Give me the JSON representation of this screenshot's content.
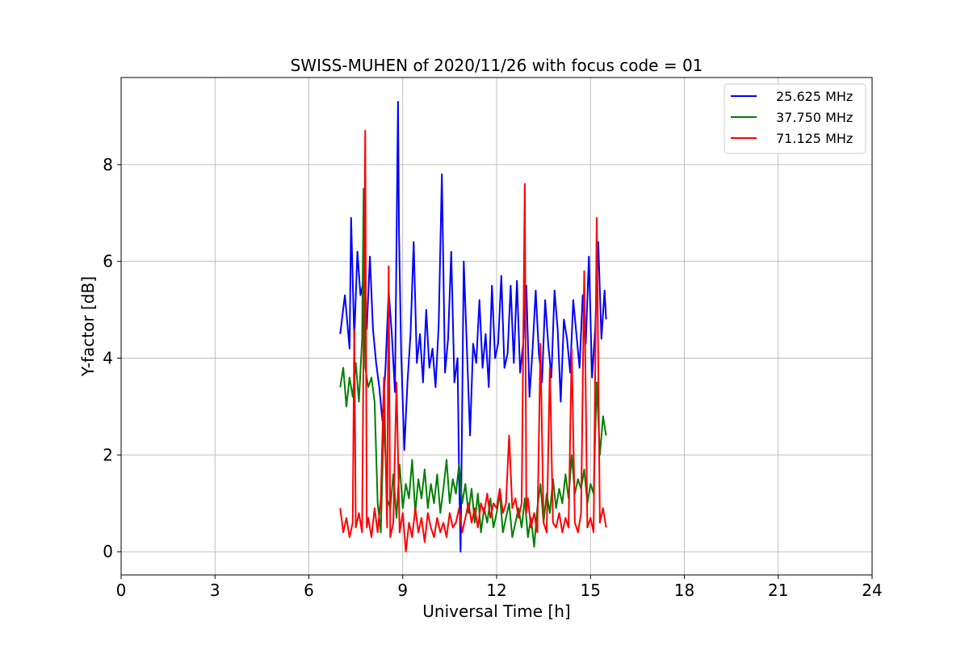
{
  "chart_data": {
    "type": "line",
    "title": "SWISS-MUHEN of 2020/11/26 with focus code = 01",
    "xlabel": "Universal Time [h]",
    "ylabel": "Y-factor [dB]",
    "xlim": [
      0,
      24
    ],
    "ylim": [
      -0.48,
      9.8
    ],
    "xticks": [
      0,
      3,
      6,
      9,
      12,
      15,
      18,
      21,
      24
    ],
    "yticks": [
      0,
      2,
      4,
      6,
      8
    ],
    "grid": true,
    "legend_position": "top-right",
    "series": [
      {
        "name": "25.625 MHz",
        "color": "#0000ff",
        "x": [
          7.0,
          7.15,
          7.3,
          7.35,
          7.45,
          7.55,
          7.65,
          7.75,
          7.85,
          7.95,
          8.05,
          8.15,
          8.25,
          8.35,
          8.45,
          8.55,
          8.65,
          8.75,
          8.85,
          8.88,
          8.95,
          9.05,
          9.15,
          9.25,
          9.35,
          9.45,
          9.55,
          9.65,
          9.75,
          9.85,
          9.95,
          10.05,
          10.15,
          10.25,
          10.35,
          10.45,
          10.55,
          10.65,
          10.75,
          10.8,
          10.85,
          10.95,
          11.05,
          11.15,
          11.25,
          11.35,
          11.45,
          11.55,
          11.65,
          11.75,
          11.85,
          11.95,
          12.05,
          12.15,
          12.25,
          12.35,
          12.45,
          12.55,
          12.65,
          12.75,
          12.85,
          12.95,
          13.05,
          13.15,
          13.25,
          13.35,
          13.45,
          13.55,
          13.65,
          13.75,
          13.85,
          13.95,
          14.05,
          14.15,
          14.25,
          14.35,
          14.45,
          14.55,
          14.65,
          14.75,
          14.85,
          14.95,
          15.05,
          15.15,
          15.25,
          15.35,
          15.45,
          15.5
        ],
        "y": [
          4.5,
          5.3,
          4.2,
          6.9,
          4.4,
          6.2,
          5.3,
          5.6,
          4.6,
          6.1,
          4.6,
          3.9,
          3.4,
          2.7,
          3.8,
          5.4,
          4.5,
          3.3,
          9.3,
          6.6,
          4.1,
          2.1,
          3.5,
          4.5,
          6.4,
          3.9,
          4.5,
          3.5,
          5.0,
          3.8,
          4.2,
          3.4,
          4.7,
          7.8,
          3.7,
          4.4,
          6.2,
          3.5,
          4.0,
          1.6,
          0.0,
          6.0,
          4.2,
          2.4,
          4.3,
          3.9,
          5.2,
          3.8,
          4.5,
          3.4,
          5.5,
          4.0,
          4.3,
          5.7,
          3.8,
          4.1,
          5.5,
          3.9,
          5.6,
          3.7,
          4.3,
          5.5,
          3.2,
          4.2,
          5.4,
          4.1,
          3.5,
          5.2,
          4.3,
          3.6,
          5.4,
          4.6,
          3.1,
          4.8,
          4.4,
          3.7,
          5.2,
          4.5,
          3.8,
          5.3,
          4.3,
          6.1,
          3.6,
          4.6,
          6.4,
          4.4,
          5.4,
          4.8
        ]
      },
      {
        "name": "37.750 MHz",
        "color": "#008000",
        "x": [
          7.0,
          7.1,
          7.2,
          7.3,
          7.4,
          7.5,
          7.6,
          7.7,
          7.75,
          7.8,
          7.9,
          8.0,
          8.1,
          8.2,
          8.3,
          8.4,
          8.5,
          8.6,
          8.7,
          8.8,
          8.9,
          9.0,
          9.1,
          9.2,
          9.3,
          9.4,
          9.5,
          9.6,
          9.7,
          9.8,
          9.9,
          10.0,
          10.1,
          10.2,
          10.3,
          10.4,
          10.5,
          10.6,
          10.7,
          10.8,
          10.9,
          11.0,
          11.1,
          11.2,
          11.3,
          11.4,
          11.5,
          11.6,
          11.7,
          11.8,
          11.9,
          12.0,
          12.1,
          12.2,
          12.3,
          12.4,
          12.5,
          12.6,
          12.7,
          12.8,
          12.9,
          13.0,
          13.1,
          13.2,
          13.3,
          13.4,
          13.5,
          13.6,
          13.7,
          13.8,
          13.9,
          14.0,
          14.1,
          14.2,
          14.3,
          14.4,
          14.5,
          14.6,
          14.7,
          14.8,
          14.9,
          15.0,
          15.1,
          15.2,
          15.3,
          15.4,
          15.5
        ],
        "y": [
          3.4,
          3.8,
          3.0,
          3.6,
          3.2,
          3.9,
          3.1,
          4.4,
          7.5,
          3.8,
          3.4,
          3.6,
          3.1,
          1.0,
          0.4,
          2.8,
          1.1,
          0.9,
          1.6,
          0.7,
          1.8,
          0.9,
          1.4,
          1.1,
          1.9,
          0.8,
          1.5,
          1.1,
          1.7,
          0.9,
          1.4,
          1.0,
          1.6,
          0.8,
          1.3,
          1.9,
          1.0,
          1.5,
          1.2,
          1.8,
          1.0,
          1.4,
          0.8,
          1.3,
          0.6,
          1.2,
          0.4,
          0.9,
          0.6,
          1.1,
          0.5,
          0.8,
          1.2,
          0.4,
          0.7,
          1.0,
          0.3,
          0.6,
          0.9,
          0.5,
          1.1,
          0.3,
          0.7,
          0.1,
          0.9,
          1.4,
          0.6,
          1.2,
          0.8,
          1.5,
          0.9,
          1.3,
          1.0,
          1.6,
          1.1,
          2.0,
          1.2,
          1.5,
          1.3,
          1.7,
          1.0,
          1.4,
          1.2,
          3.5,
          2.0,
          2.8,
          2.4
        ]
      },
      {
        "name": "71.125 MHz",
        "color": "#ff0000",
        "x": [
          7.0,
          7.1,
          7.2,
          7.3,
          7.4,
          7.45,
          7.5,
          7.6,
          7.7,
          7.8,
          7.85,
          7.9,
          8.0,
          8.1,
          8.2,
          8.3,
          8.4,
          8.5,
          8.55,
          8.6,
          8.7,
          8.8,
          8.9,
          9.0,
          9.1,
          9.2,
          9.3,
          9.4,
          9.5,
          9.6,
          9.7,
          9.8,
          9.9,
          10.0,
          10.1,
          10.2,
          10.3,
          10.4,
          10.5,
          10.6,
          10.7,
          10.8,
          10.9,
          11.0,
          11.1,
          11.2,
          11.3,
          11.4,
          11.5,
          11.6,
          11.7,
          11.8,
          11.9,
          12.0,
          12.1,
          12.2,
          12.3,
          12.4,
          12.5,
          12.6,
          12.7,
          12.8,
          12.9,
          12.95,
          13.0,
          13.1,
          13.2,
          13.3,
          13.4,
          13.5,
          13.6,
          13.7,
          13.8,
          13.9,
          14.0,
          14.1,
          14.2,
          14.3,
          14.4,
          14.5,
          14.6,
          14.7,
          14.8,
          14.9,
          15.0,
          15.1,
          15.2,
          15.3,
          15.4,
          15.5
        ],
        "y": [
          0.9,
          0.4,
          0.7,
          0.3,
          0.6,
          4.6,
          0.5,
          0.8,
          0.4,
          8.7,
          0.5,
          0.7,
          0.3,
          0.9,
          0.4,
          1.1,
          3.6,
          0.5,
          5.9,
          0.3,
          0.6,
          3.5,
          0.4,
          0.8,
          0.0,
          0.6,
          0.3,
          0.9,
          0.4,
          0.7,
          0.2,
          0.8,
          0.5,
          0.3,
          0.7,
          0.4,
          0.6,
          0.3,
          0.8,
          0.5,
          0.6,
          0.9,
          0.4,
          0.7,
          1.0,
          0.6,
          0.9,
          0.5,
          1.0,
          0.8,
          1.2,
          0.7,
          1.0,
          0.9,
          1.3,
          0.8,
          1.0,
          2.4,
          0.9,
          1.1,
          0.7,
          1.0,
          7.6,
          0.8,
          1.1,
          0.5,
          0.8,
          0.4,
          4.3,
          0.6,
          0.4,
          3.8,
          0.6,
          0.5,
          0.8,
          0.4,
          0.7,
          0.5,
          4.2,
          0.6,
          0.4,
          0.8,
          5.8,
          0.5,
          0.7,
          0.4,
          6.9,
          0.6,
          0.9,
          0.5
        ]
      }
    ]
  }
}
